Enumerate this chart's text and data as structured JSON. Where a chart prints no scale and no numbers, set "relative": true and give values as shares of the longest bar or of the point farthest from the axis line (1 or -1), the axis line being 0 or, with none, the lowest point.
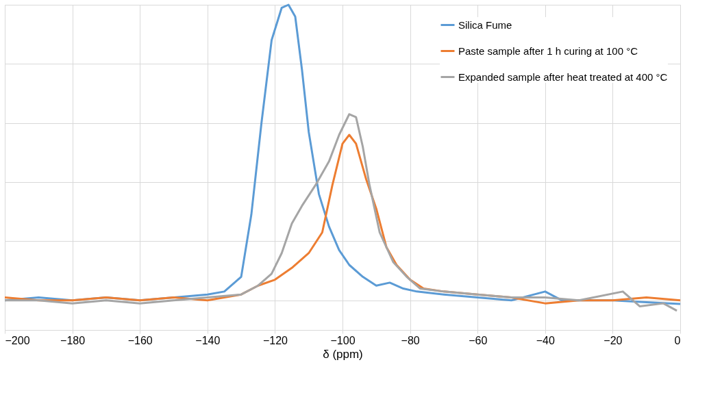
{
  "chart_data": {
    "type": "line",
    "relative": true,
    "xlabel": "δ (ppm)",
    "xlim": [
      -200,
      0
    ],
    "xticks": [
      -200,
      -180,
      -160,
      -140,
      -120,
      -100,
      -80,
      -60,
      -40,
      -20,
      0
    ],
    "grid": true,
    "legend": "top right",
    "line_style": "solid",
    "marker": "none",
    "series": [
      {
        "name": "Silica Fume",
        "color": "#5b9bd5",
        "x": [
          -200,
          -190,
          -180,
          -170,
          -160,
          -150,
          -140,
          -135,
          -130,
          -127,
          -124,
          -121,
          -118,
          -116,
          -114,
          -112,
          -110,
          -107,
          -104,
          -101,
          -98,
          -94,
          -90,
          -86,
          -82,
          -78,
          -70,
          -60,
          -50,
          -40,
          -35,
          -20,
          -10,
          0
        ],
        "values": [
          0.0,
          0.01,
          0.0,
          0.01,
          0.0,
          0.01,
          0.02,
          0.03,
          0.08,
          0.29,
          0.6,
          0.88,
          0.99,
          1,
          0.96,
          0.78,
          0.57,
          0.36,
          0.25,
          0.17,
          0.12,
          0.08,
          0.05,
          0.06,
          0.04,
          0.03,
          0.02,
          0.01,
          0.0,
          0.03,
          0.0,
          0.0,
          -0.006,
          -0.012
        ]
      },
      {
        "name": "Paste sample after 1 h curing at 100 °C",
        "color": "#ed7d31",
        "x": [
          -200,
          -190,
          -180,
          -170,
          -160,
          -150,
          -140,
          -130,
          -125,
          -120,
          -115,
          -110,
          -106,
          -103,
          -100,
          -98,
          -96,
          -93,
          -90,
          -87,
          -84,
          -80,
          -76,
          -70,
          -60,
          -50,
          -40,
          -30,
          -20,
          -10,
          0
        ],
        "values": [
          0.01,
          0.0,
          0.0,
          0.01,
          0.0,
          0.01,
          0.0,
          0.02,
          0.05,
          0.07,
          0.11,
          0.16,
          0.23,
          0.39,
          0.53,
          0.56,
          0.53,
          0.41,
          0.31,
          0.18,
          0.12,
          0.07,
          0.04,
          0.03,
          0.02,
          0.01,
          -0.01,
          0.0,
          0.0,
          0.01,
          0.0
        ]
      },
      {
        "name": "Expanded sample after heat treated at 400 °C",
        "color": "#a5a5a5",
        "x": [
          -200,
          -190,
          -180,
          -170,
          -160,
          -150,
          -140,
          -130,
          -125,
          -121,
          -118,
          -115,
          -112,
          -108,
          -104,
          -101,
          -98,
          -96,
          -94,
          -92,
          -89,
          -85,
          -81,
          -77,
          -70,
          -60,
          -50,
          -40,
          -30,
          -17,
          -12,
          -5,
          -1
        ],
        "values": [
          0.0,
          0.0,
          -0.01,
          0.0,
          -0.01,
          0.0,
          0.01,
          0.02,
          0.05,
          0.09,
          0.16,
          0.26,
          0.32,
          0.39,
          0.47,
          0.56,
          0.63,
          0.62,
          0.52,
          0.39,
          0.23,
          0.13,
          0.08,
          0.04,
          0.03,
          0.02,
          0.01,
          0.01,
          0.0,
          0.03,
          -0.02,
          -0.01,
          -0.035
        ]
      }
    ]
  }
}
